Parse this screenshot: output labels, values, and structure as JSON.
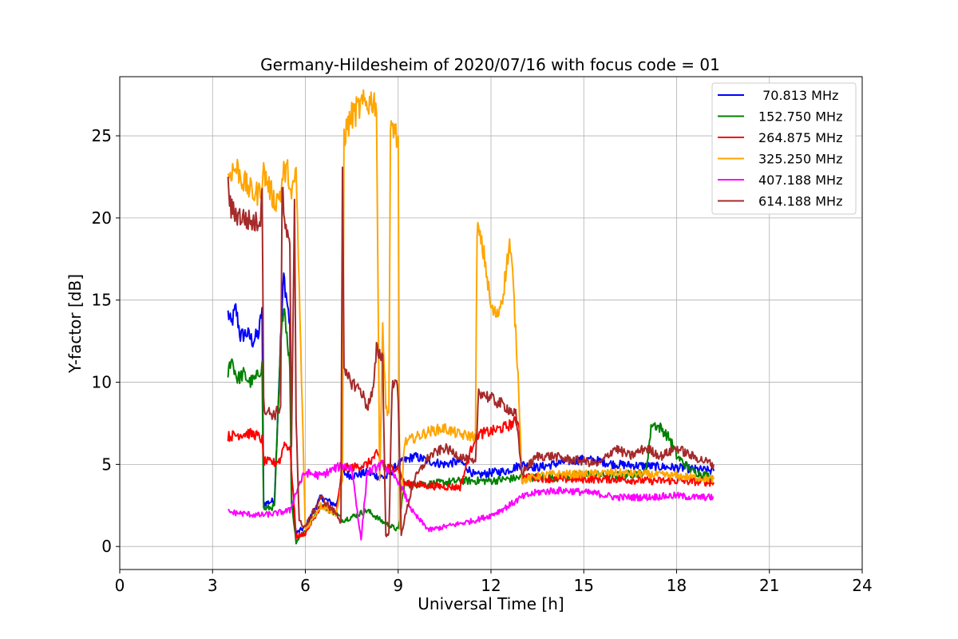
{
  "chart_data": {
    "type": "line",
    "title": "Germany-Hildesheim of 2020/07/16 with focus code = 01",
    "xlabel": "Universal Time [h]",
    "ylabel": "Y-factor [dB]",
    "xlim": [
      0,
      24
    ],
    "ylim": [
      -1.4,
      28.6
    ],
    "xticks": [
      0,
      3,
      6,
      9,
      12,
      15,
      18,
      21,
      24
    ],
    "xtick_labels": [
      "0",
      "3",
      "6",
      "9",
      "12",
      "15",
      "18",
      "21",
      "24"
    ],
    "yticks": [
      0,
      5,
      10,
      15,
      20,
      25
    ],
    "ytick_labels": [
      "0",
      "5",
      "10",
      "15",
      "20",
      "25"
    ],
    "grid": true,
    "legend_position": "top-right",
    "series": [
      {
        "name": " 70.813 MHz",
        "color": "#0000ff",
        "x": [
          3.5,
          3.6,
          3.75,
          3.9,
          4.1,
          4.3,
          4.5,
          4.6,
          4.65,
          5.0,
          5.2,
          5.3,
          5.5,
          5.55,
          5.7,
          6.0,
          6.5,
          7.0,
          7.2,
          7.5,
          8.0,
          8.3,
          8.6,
          9.0,
          9.5,
          10.0,
          10.5,
          11.0,
          11.5,
          12.0,
          12.5,
          13.0,
          13.5,
          14.0,
          14.5,
          15.0,
          15.5,
          16.0,
          17.0,
          18.0,
          19.2
        ],
        "y": [
          14.2,
          13.5,
          14.5,
          12.8,
          13.0,
          12.5,
          13.0,
          14.5,
          2.6,
          2.8,
          12.5,
          16.5,
          13.5,
          3.0,
          0.8,
          1.2,
          3.0,
          2.5,
          4.5,
          4.3,
          4.5,
          4.3,
          4.2,
          5.0,
          5.5,
          5.2,
          5.0,
          5.2,
          4.3,
          4.5,
          4.6,
          5.0,
          4.8,
          5.0,
          5.2,
          5.3,
          5.2,
          5.0,
          4.9,
          4.8,
          4.6
        ]
      },
      {
        "name": "152.750 MHz",
        "color": "#008000",
        "x": [
          3.5,
          3.6,
          3.8,
          4.0,
          4.2,
          4.4,
          4.6,
          4.65,
          5.0,
          5.2,
          5.3,
          5.5,
          5.55,
          5.7,
          6.0,
          6.5,
          7.0,
          7.2,
          7.5,
          8.0,
          8.5,
          9.0,
          9.2,
          10.0,
          11.0,
          12.0,
          13.0,
          14.0,
          15.0,
          16.0,
          17.0,
          17.2,
          17.5,
          17.8,
          18.0,
          18.5,
          19.2
        ],
        "y": [
          10.5,
          11.5,
          10.2,
          10.5,
          10.0,
          10.2,
          11.0,
          2.3,
          2.4,
          12.0,
          15.0,
          11.0,
          2.8,
          0.3,
          1.0,
          2.5,
          2.0,
          1.6,
          1.8,
          2.2,
          1.5,
          1.0,
          3.8,
          3.8,
          4.0,
          4.0,
          4.2,
          4.2,
          4.4,
          4.3,
          4.5,
          7.5,
          7.2,
          6.5,
          5.5,
          4.6,
          4.2
        ]
      },
      {
        "name": "264.875 MHz",
        "color": "#ff0000",
        "x": [
          3.5,
          3.8,
          4.1,
          4.4,
          4.6,
          4.65,
          5.0,
          5.2,
          5.3,
          5.5,
          5.55,
          5.7,
          6.0,
          6.5,
          7.0,
          7.2,
          7.5,
          8.0,
          8.3,
          8.6,
          9.0,
          9.2,
          9.5,
          10.0,
          11.0,
          11.5,
          12.0,
          12.5,
          12.9,
          13.0,
          13.5,
          14.0,
          15.0,
          16.0,
          17.0,
          18.0,
          19.2
        ],
        "y": [
          6.7,
          6.8,
          6.9,
          6.8,
          6.5,
          5.2,
          5.1,
          5.3,
          6.3,
          6.0,
          4.8,
          0.6,
          0.8,
          2.5,
          2.0,
          4.8,
          4.8,
          5.0,
          5.6,
          4.8,
          4.8,
          3.8,
          3.8,
          3.7,
          3.6,
          6.8,
          7.0,
          7.3,
          7.7,
          4.2,
          4.2,
          4.1,
          4.1,
          4.1,
          4.0,
          4.0,
          3.9
        ]
      },
      {
        "name": "325.250 MHz",
        "color": "#ffa500",
        "x": [
          3.5,
          3.6,
          3.8,
          4.0,
          4.3,
          4.5,
          4.65,
          5.0,
          5.2,
          5.3,
          5.45,
          5.55,
          5.7,
          6.0,
          6.5,
          7.0,
          7.2,
          7.25,
          7.5,
          7.8,
          8.0,
          8.2,
          8.3,
          8.4,
          8.5,
          8.6,
          8.7,
          8.75,
          8.8,
          8.85,
          8.9,
          9.0,
          9.05,
          9.2,
          9.5,
          10.0,
          10.5,
          11.0,
          11.5,
          11.55,
          11.8,
          12.0,
          12.2,
          12.4,
          12.6,
          12.7,
          12.9,
          13.0,
          13.5,
          14.0,
          15.0,
          16.0,
          17.0,
          18.0,
          19.2
        ],
        "y": [
          22.4,
          22.9,
          23.0,
          22.2,
          21.5,
          21.5,
          22.8,
          21.0,
          21.5,
          22.8,
          22.8,
          21.0,
          23.0,
          1.0,
          2.5,
          2.0,
          4.0,
          25.0,
          26.2,
          26.8,
          27.0,
          27.2,
          26.9,
          4.0,
          13.5,
          8.5,
          8.2,
          24.8,
          25.5,
          25.6,
          25.3,
          24.5,
          1.0,
          6.3,
          6.6,
          7.0,
          7.2,
          6.8,
          6.7,
          19.5,
          17.5,
          14.5,
          14.0,
          15.5,
          18.5,
          16.5,
          9.5,
          4.0,
          4.3,
          4.4,
          4.4,
          4.5,
          4.4,
          4.3,
          4.1
        ]
      },
      {
        "name": "407.188 MHz",
        "color": "#ff00ff",
        "x": [
          3.5,
          4.0,
          4.5,
          5.0,
          5.5,
          5.8,
          6.0,
          6.5,
          7.0,
          7.2,
          7.5,
          7.8,
          8.0,
          8.5,
          9.0,
          9.5,
          10.0,
          10.5,
          11.0,
          11.5,
          12.0,
          12.5,
          13.0,
          13.5,
          14.0,
          14.5,
          15.0,
          15.5,
          16.0,
          17.0,
          18.0,
          18.5,
          19.2
        ],
        "y": [
          2.1,
          2.0,
          1.9,
          2.0,
          2.2,
          3.8,
          4.5,
          4.3,
          4.8,
          4.9,
          4.8,
          0.4,
          4.5,
          5.0,
          4.0,
          2.0,
          1.0,
          1.2,
          1.4,
          1.6,
          1.9,
          2.4,
          3.0,
          3.3,
          3.4,
          3.4,
          3.3,
          3.2,
          3.0,
          3.0,
          3.1,
          3.0,
          3.0
        ]
      },
      {
        "name": "614.188 MHz",
        "color": "#a52a2a",
        "x": [
          3.5,
          3.6,
          3.8,
          4.0,
          4.2,
          4.4,
          4.55,
          4.6,
          4.65,
          4.7,
          5.0,
          5.2,
          5.25,
          5.3,
          5.5,
          5.55,
          5.65,
          5.7,
          5.8,
          6.0,
          6.5,
          7.0,
          7.15,
          7.2,
          7.25,
          7.5,
          7.8,
          8.0,
          8.2,
          8.3,
          8.5,
          8.6,
          8.7,
          8.8,
          8.9,
          9.0,
          9.1,
          9.5,
          10.0,
          10.5,
          11.0,
          11.5,
          11.6,
          12.0,
          12.5,
          12.8,
          13.0,
          13.5,
          14.0,
          14.5,
          15.0,
          15.5,
          16.0,
          16.5,
          17.0,
          17.5,
          18.0,
          18.5,
          19.2
        ],
        "y": [
          21.9,
          20.5,
          20.2,
          20.0,
          19.8,
          19.7,
          20.0,
          22.5,
          9.0,
          8.3,
          8.0,
          8.5,
          22.3,
          20.0,
          18.0,
          6.0,
          21.2,
          8.0,
          1.5,
          1.2,
          3.0,
          2.0,
          1.5,
          23.8,
          10.5,
          10.0,
          9.5,
          8.5,
          9.5,
          12.0,
          11.5,
          0.6,
          0.8,
          9.5,
          10.5,
          9.0,
          0.8,
          4.0,
          5.5,
          6.0,
          5.5,
          5.0,
          9.5,
          9.0,
          8.5,
          8.0,
          4.5,
          5.5,
          5.5,
          5.3,
          5.2,
          5.0,
          6.0,
          5.5,
          6.0,
          5.5,
          6.0,
          5.5,
          5.0
        ]
      }
    ]
  }
}
